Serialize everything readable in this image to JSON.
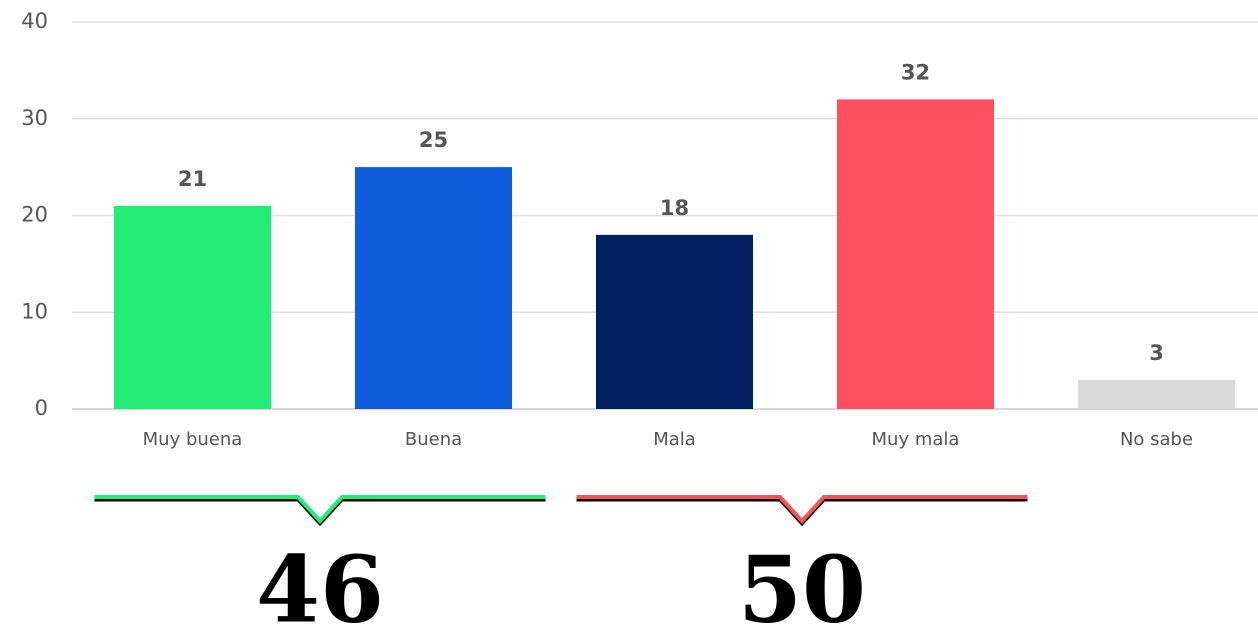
{
  "chart_data": {
    "type": "bar",
    "categories": [
      "Muy buena",
      "Buena",
      "Mala",
      "Muy mala",
      "No sabe"
    ],
    "values": [
      21,
      25,
      18,
      32,
      3
    ],
    "colors": [
      "#22ee77",
      "#0e5cdc",
      "#022060",
      "#ff505f",
      "#d9d9d9"
    ],
    "ylim": [
      0,
      40
    ],
    "yticks": [
      0,
      10,
      20,
      30,
      40
    ],
    "grid": true,
    "groups": [
      {
        "categories": [
          "Muy buena",
          "Buena"
        ],
        "total": 46,
        "color": "#22ee77"
      },
      {
        "categories": [
          "Mala",
          "Muy mala"
        ],
        "total": 50,
        "color": "#ff505f"
      }
    ]
  }
}
